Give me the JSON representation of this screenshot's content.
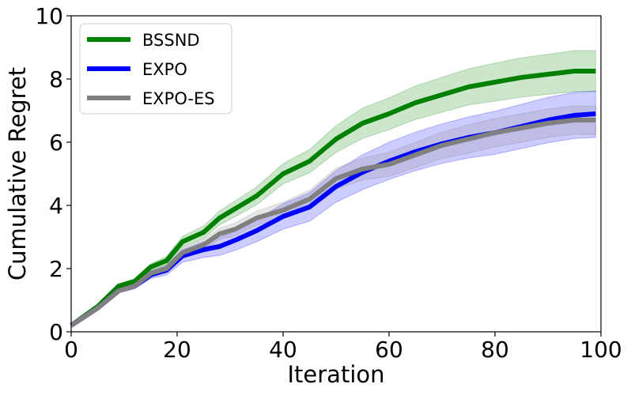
{
  "chart_data": {
    "type": "line",
    "title": "",
    "xlabel": "Iteration",
    "ylabel": "Cumulative Regret",
    "xlim": [
      0,
      100
    ],
    "ylim": [
      0,
      10
    ],
    "xticks": [
      0,
      20,
      40,
      60,
      80,
      100
    ],
    "yticks": [
      0,
      2,
      4,
      6,
      8,
      10
    ],
    "grid": false,
    "legend_position": "top-left",
    "x": [
      0,
      5,
      9,
      12,
      15,
      18,
      21,
      25,
      28,
      31,
      35,
      40,
      45,
      50,
      55,
      60,
      65,
      70,
      75,
      80,
      85,
      90,
      95,
      99
    ],
    "series": [
      {
        "name": "BSSND",
        "color": "#008000",
        "band_color": "rgba(0,128,0,0.2)",
        "values": [
          0.2,
          0.8,
          1.45,
          1.6,
          2.05,
          2.25,
          2.85,
          3.15,
          3.6,
          3.9,
          4.3,
          5.0,
          5.4,
          6.1,
          6.6,
          6.9,
          7.25,
          7.5,
          7.75,
          7.9,
          8.05,
          8.15,
          8.25,
          8.25
        ],
        "lower": [
          0.2,
          0.78,
          1.4,
          1.53,
          1.95,
          2.12,
          2.68,
          2.95,
          3.38,
          3.65,
          4.02,
          4.68,
          5.03,
          5.68,
          6.12,
          6.4,
          6.72,
          6.95,
          7.18,
          7.3,
          7.43,
          7.52,
          7.6,
          7.6
        ],
        "upper": [
          0.2,
          0.82,
          1.5,
          1.67,
          2.15,
          2.38,
          3.02,
          3.35,
          3.82,
          4.15,
          4.58,
          5.32,
          5.77,
          6.52,
          7.08,
          7.4,
          7.78,
          8.05,
          8.32,
          8.5,
          8.67,
          8.78,
          8.9,
          8.9
        ]
      },
      {
        "name": "EXPO",
        "color": "#0000ff",
        "band_color": "rgba(0,0,255,0.2)",
        "values": [
          0.2,
          0.75,
          1.3,
          1.45,
          1.8,
          1.95,
          2.4,
          2.6,
          2.7,
          2.9,
          3.2,
          3.65,
          3.95,
          4.6,
          5.05,
          5.4,
          5.7,
          5.95,
          6.15,
          6.3,
          6.5,
          6.7,
          6.85,
          6.9
        ],
        "lower": [
          0.2,
          0.72,
          1.24,
          1.36,
          1.68,
          1.8,
          2.2,
          2.35,
          2.42,
          2.58,
          2.85,
          3.25,
          3.5,
          4.1,
          4.5,
          4.82,
          5.1,
          5.33,
          5.5,
          5.62,
          5.8,
          5.98,
          6.12,
          6.15
        ],
        "upper": [
          0.2,
          0.78,
          1.36,
          1.54,
          1.92,
          2.1,
          2.6,
          2.85,
          2.98,
          3.22,
          3.55,
          4.05,
          4.4,
          5.1,
          5.6,
          6.0,
          6.32,
          6.58,
          6.8,
          6.98,
          7.2,
          7.42,
          7.58,
          7.62
        ]
      },
      {
        "name": "EXPO-ES",
        "color": "#808080",
        "band_color": "rgba(128,128,128,0.2)",
        "values": [
          0.2,
          0.75,
          1.3,
          1.45,
          1.85,
          2.0,
          2.5,
          2.75,
          3.1,
          3.25,
          3.6,
          3.85,
          4.2,
          4.85,
          5.15,
          5.3,
          5.6,
          5.9,
          6.1,
          6.3,
          6.45,
          6.6,
          6.7,
          6.7
        ],
        "lower": [
          0.2,
          0.73,
          1.26,
          1.39,
          1.76,
          1.88,
          2.35,
          2.58,
          2.92,
          3.05,
          3.38,
          3.6,
          3.92,
          4.52,
          4.8,
          4.92,
          5.2,
          5.48,
          5.65,
          5.85,
          6.0,
          6.15,
          6.25,
          6.25
        ],
        "upper": [
          0.2,
          0.77,
          1.34,
          1.51,
          1.94,
          2.12,
          2.65,
          2.92,
          3.28,
          3.45,
          3.82,
          4.1,
          4.48,
          5.18,
          5.5,
          5.68,
          6.0,
          6.32,
          6.55,
          6.75,
          6.9,
          7.05,
          7.15,
          7.15
        ]
      }
    ]
  }
}
